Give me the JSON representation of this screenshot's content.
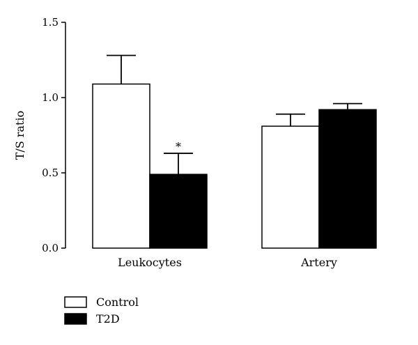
{
  "chart_data": {
    "type": "bar",
    "categories": [
      "Leukocytes",
      "Artery"
    ],
    "series": [
      {
        "name": "Control",
        "values": [
          1.09,
          0.81
        ],
        "errors": [
          0.19,
          0.08
        ],
        "color": "#ffffff"
      },
      {
        "name": "T2D",
        "values": [
          0.49,
          0.92
        ],
        "errors": [
          0.14,
          0.04
        ],
        "color": "#000000"
      }
    ],
    "ylabel": "T/S ratio",
    "ylim": [
      0,
      1.5
    ],
    "yticks": [
      "0.0",
      "0.5",
      "1.0",
      "1.5"
    ],
    "annotations": [
      {
        "category": "Leukocytes",
        "series": "T2D",
        "text": "*"
      }
    ],
    "legend": {
      "position": "bottom-left"
    },
    "grid": false
  }
}
